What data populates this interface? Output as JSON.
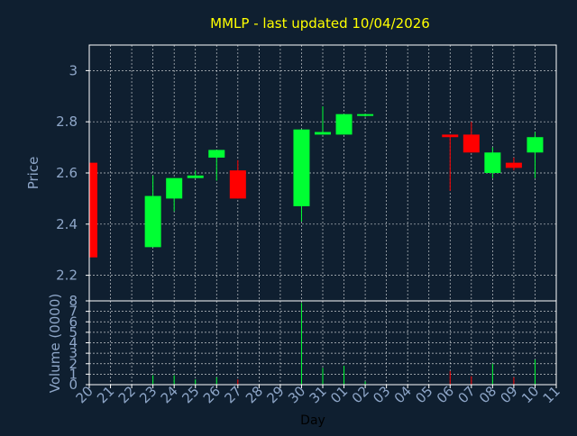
{
  "title": "MMLP - last updated 10/04/2026",
  "colors": {
    "background": "#0f1f30",
    "title": "#ffff00",
    "axis_text": "#8ea6c8",
    "plot_border": "#ffffff",
    "grid": "#ffffff",
    "up": "#00ff33",
    "down": "#ff0000"
  },
  "chart_data": [
    {
      "type": "candlestick",
      "title": "MMLP - last updated 10/04/2026",
      "ylabel": "Price",
      "ylim": [
        2.1,
        3.1
      ],
      "yticks": [
        2.2,
        2.4,
        2.6,
        2.8,
        3
      ],
      "ytick_labels": [
        "2.2",
        "2.4",
        "2.6",
        "2.8",
        "3"
      ],
      "grid": true,
      "candles": [
        {
          "day": "20",
          "open": 2.64,
          "high": 2.64,
          "low": 2.27,
          "close": 2.27
        },
        {
          "day": "23",
          "open": 2.31,
          "high": 2.59,
          "low": 2.31,
          "close": 2.51
        },
        {
          "day": "24",
          "open": 2.5,
          "high": 2.58,
          "low": 2.45,
          "close": 2.58
        },
        {
          "day": "25",
          "open": 2.58,
          "high": 2.61,
          "low": 2.58,
          "close": 2.59
        },
        {
          "day": "26",
          "open": 2.66,
          "high": 2.69,
          "low": 2.57,
          "close": 2.69
        },
        {
          "day": "27",
          "open": 2.61,
          "high": 2.65,
          "low": 2.5,
          "close": 2.5
        },
        {
          "day": "30",
          "open": 2.47,
          "high": 2.77,
          "low": 2.41,
          "close": 2.77
        },
        {
          "day": "31",
          "open": 2.75,
          "high": 2.86,
          "low": 2.75,
          "close": 2.76
        },
        {
          "day": "01",
          "open": 2.75,
          "high": 2.83,
          "low": 2.75,
          "close": 2.83
        },
        {
          "day": "02",
          "open": 2.825,
          "high": 2.83,
          "low": 2.82,
          "close": 2.83
        },
        {
          "day": "06",
          "open": 2.75,
          "high": 2.75,
          "low": 2.53,
          "close": 2.74
        },
        {
          "day": "07",
          "open": 2.75,
          "high": 2.8,
          "low": 2.68,
          "close": 2.68
        },
        {
          "day": "08",
          "open": 2.6,
          "high": 2.7,
          "low": 2.58,
          "close": 2.68
        },
        {
          "day": "09",
          "open": 2.64,
          "high": 2.66,
          "low": 2.61,
          "close": 2.62
        },
        {
          "day": "10",
          "open": 2.68,
          "high": 2.76,
          "low": 2.58,
          "close": 2.74
        }
      ]
    },
    {
      "type": "bar",
      "ylabel": "Volume (0000)",
      "xlabel": "Day",
      "ylim": [
        0,
        8
      ],
      "yticks": [
        0,
        1,
        2,
        3,
        4,
        5,
        6,
        7,
        8
      ],
      "ytick_labels": [
        "0",
        "1",
        "2",
        "3",
        "4",
        "5",
        "6",
        "7",
        "8"
      ],
      "categories": [
        "20",
        "21",
        "22",
        "23",
        "24",
        "25",
        "26",
        "27",
        "28",
        "29",
        "30",
        "31",
        "01",
        "02",
        "03",
        "04",
        "05",
        "06",
        "07",
        "08",
        "09",
        "10",
        "11"
      ],
      "values": [
        0,
        null,
        null,
        0.9,
        0.9,
        0.5,
        0.7,
        0.5,
        null,
        null,
        7.8,
        1.6,
        1.8,
        0.3,
        null,
        null,
        null,
        1.3,
        0.8,
        2.0,
        0.7,
        2.4,
        null
      ],
      "direction": [
        "down",
        null,
        null,
        "up",
        "up",
        "up",
        "up",
        "down",
        null,
        null,
        "up",
        "up",
        "up",
        "up",
        null,
        null,
        null,
        "down",
        "down",
        "up",
        "down",
        "up",
        null
      ]
    }
  ]
}
